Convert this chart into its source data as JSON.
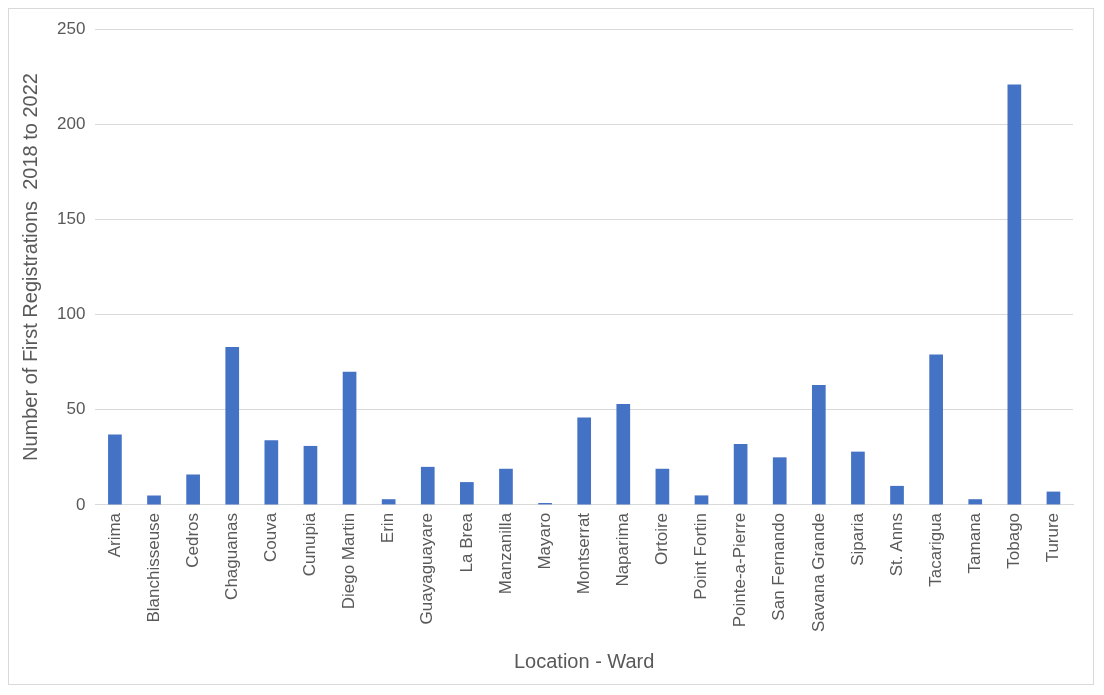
{
  "chart_data": {
    "type": "bar",
    "xlabel": "Location - Ward",
    "ylabel": "Number of First Registrations  2018 to 2022",
    "categories": [
      "Arima",
      "Blanchisseuse",
      "Cedros",
      "Chaguanas",
      "Couva",
      "Cunupia",
      "Diego Martin",
      "Erin",
      "Guayaguayare",
      "La Brea",
      "Manzanilla",
      "Mayaro",
      "Montserrat",
      "Naparima",
      "Ortoire",
      "Point Fortin",
      "Pointe-a-Pierre",
      "San Fernando",
      "Savana Grande",
      "Siparia",
      "St. Anns",
      "Tacarigua",
      "Tamana",
      "Tobago",
      "Turure"
    ],
    "values": [
      37,
      5,
      16,
      83,
      34,
      31,
      70,
      3,
      20,
      12,
      19,
      1,
      46,
      53,
      19,
      5,
      32,
      25,
      63,
      28,
      10,
      79,
      3,
      221,
      7
    ],
    "color": "#4472c4",
    "ylim": [
      0,
      250
    ],
    "yticks": [
      0,
      50,
      100,
      150,
      200,
      250
    ],
    "grid": "y",
    "legend": false
  }
}
